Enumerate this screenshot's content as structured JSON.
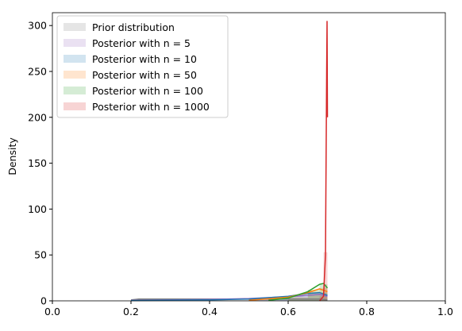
{
  "chart_data": {
    "type": "histogram",
    "ylabel": "Density",
    "xlim": [
      0,
      1
    ],
    "xticks": [
      {
        "value": 0,
        "label": "0.0"
      },
      0.2,
      0.4,
      0.6,
      0.8,
      {
        "value": 1,
        "label": "1.0"
      }
    ],
    "ylim": [
      0,
      314
    ],
    "yticks": [
      0,
      50,
      100,
      150,
      200,
      250,
      300
    ],
    "legend": "upper left",
    "series": [
      {
        "name": "Prior distribution",
        "color": "#7f7f7f",
        "bins": [
          0.2,
          0.3,
          0.4,
          0.5,
          0.6,
          0.7
        ],
        "counts": [
          2,
          2,
          2,
          2,
          2
        ],
        "kde_x": [
          0.2,
          0.22,
          0.3,
          0.4,
          0.5,
          0.6,
          0.68,
          0.7
        ],
        "kde_y": [
          1,
          2,
          2,
          2,
          2,
          2,
          2,
          1
        ]
      },
      {
        "name": "Posterior with n = 5",
        "color": "#9467bd",
        "bins": [
          0.5,
          0.6,
          0.65,
          0.7
        ],
        "counts": [
          2.5,
          5,
          7
        ],
        "kde_x": [
          0.2,
          0.4,
          0.5,
          0.6,
          0.65,
          0.68,
          0.7
        ],
        "kde_y": [
          0.5,
          1.5,
          2.5,
          4.5,
          6,
          7,
          5
        ]
      },
      {
        "name": "Posterior with n = 10",
        "color": "#1f77b4",
        "bins": [
          0.5,
          0.6,
          0.65,
          0.7
        ],
        "counts": [
          2,
          5.5,
          9
        ],
        "kde_x": [
          0.2,
          0.4,
          0.5,
          0.6,
          0.65,
          0.68,
          0.7
        ],
        "kde_y": [
          0.3,
          1,
          2,
          5,
          8,
          9,
          6
        ]
      },
      {
        "name": "Posterior with n = 50",
        "color": "#ff7f0e",
        "bins": [
          0.6,
          0.65,
          0.68,
          0.7
        ],
        "counts": [
          4,
          10,
          14
        ],
        "kde_x": [
          0.5,
          0.6,
          0.65,
          0.68,
          0.7
        ],
        "kde_y": [
          0.5,
          4,
          9,
          13,
          10
        ]
      },
      {
        "name": "Posterior with n = 100",
        "color": "#2ca02c",
        "bins": [
          0.6,
          0.65,
          0.68,
          0.7
        ],
        "counts": [
          3,
          12,
          18
        ],
        "kde_x": [
          0.55,
          0.6,
          0.65,
          0.68,
          0.69,
          0.7
        ],
        "kde_y": [
          0.5,
          3,
          10,
          18,
          19,
          14
        ]
      },
      {
        "name": "Posterior with n = 1000",
        "color": "#d62728",
        "bins": [
          0.68,
          0.69,
          0.7
        ],
        "counts": [
          5,
          53
        ],
        "kde_x": [
          0.68,
          0.69,
          0.695,
          0.698,
          0.699,
          0.7
        ],
        "kde_y": [
          0,
          5,
          50,
          250,
          305,
          200
        ]
      }
    ]
  }
}
